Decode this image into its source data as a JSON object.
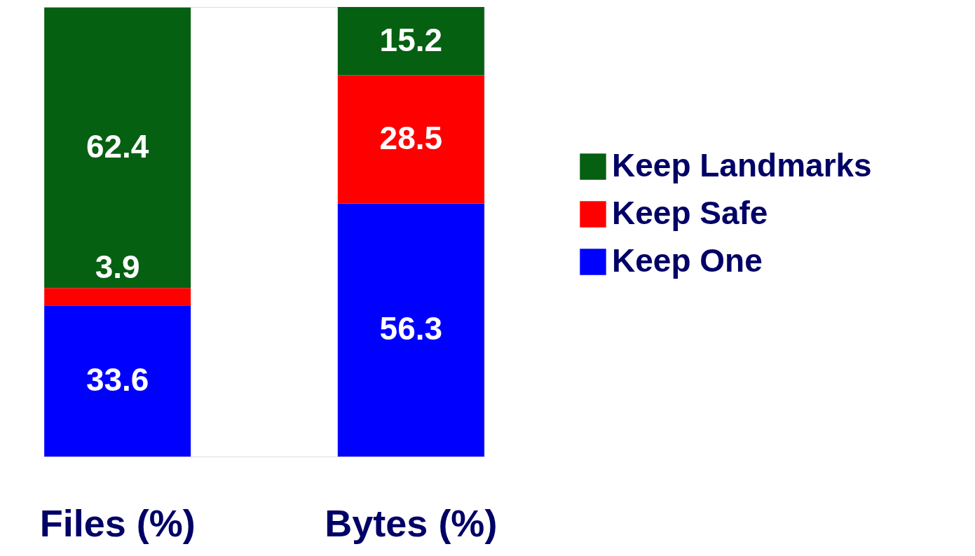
{
  "chart_data": {
    "type": "bar",
    "stacked": true,
    "categories": [
      "Files (%)",
      "Bytes (%)"
    ],
    "series": [
      {
        "name": "Keep One",
        "color": "#0000ff",
        "values": [
          33.6,
          56.3
        ]
      },
      {
        "name": "Keep Safe",
        "color": "#ff0000",
        "values": [
          3.9,
          28.5
        ]
      },
      {
        "name": "Keep Landmarks",
        "color": "#056011",
        "values": [
          62.4,
          15.2
        ]
      }
    ],
    "ylim": [
      0,
      100
    ],
    "data_labels": true,
    "legend": "right",
    "tick_labels": "x",
    "grid": false
  }
}
